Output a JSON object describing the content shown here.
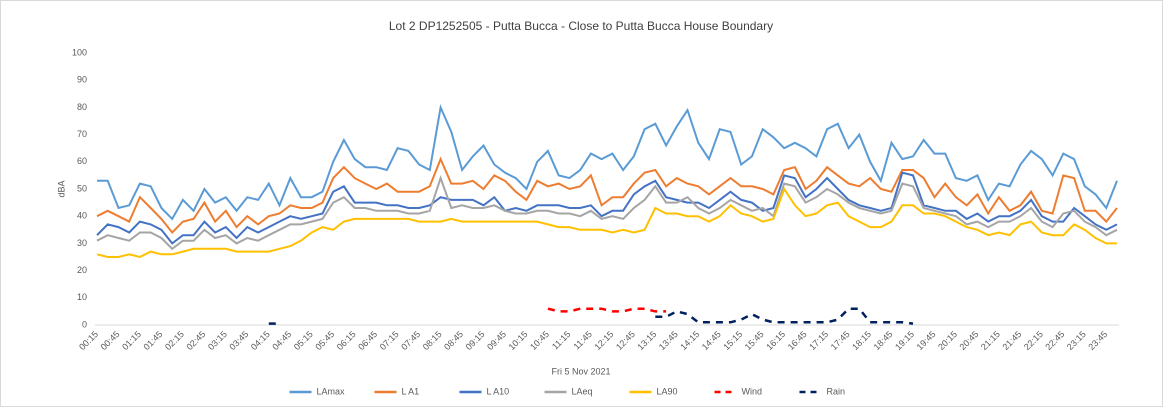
{
  "chart_data": {
    "type": "line",
    "title": "Lot 2 DP1252505 - Putta Bucca - Close to Putta Bucca House Boundary",
    "x_label": "Fri 5 Nov 2021",
    "y_label": "dBA",
    "categories": [
      "00:15",
      null,
      "00:45",
      null,
      "01:15",
      null,
      "01:45",
      null,
      "02:15",
      null,
      "02:45",
      null,
      "03:15",
      null,
      "03:45",
      null,
      "04:15",
      null,
      "04:45",
      null,
      "05:15",
      null,
      "05:45",
      null,
      "06:15",
      null,
      "06:45",
      null,
      "07:15",
      null,
      "07:45",
      null,
      "08:15",
      null,
      "08:45",
      null,
      "09:15",
      null,
      "09:45",
      null,
      "10:15",
      null,
      "10:45",
      null,
      "11:15",
      null,
      "11:45",
      null,
      "12:15",
      null,
      "12:45",
      null,
      "13:15",
      null,
      "13:45",
      null,
      "14:15",
      null,
      "14:45",
      null,
      "15:15",
      null,
      "15:45",
      null,
      "16:15",
      null,
      "16:45",
      null,
      "17:15",
      null,
      "17:45",
      null,
      "18:15",
      null,
      "18:45",
      null,
      "19:15",
      null,
      "19:45",
      null,
      "20:15",
      null,
      "20:45",
      null,
      "21:15",
      null,
      "21:45",
      null,
      "22:15",
      null,
      "22:45",
      null,
      "23:15",
      null,
      "23:45",
      null
    ],
    "ylim": [
      0,
      100
    ],
    "yticks": [
      0,
      10,
      20,
      30,
      40,
      50,
      60,
      70,
      80,
      90,
      100
    ],
    "grid": false,
    "legend": "bottom",
    "series": [
      {
        "name": "LAmax",
        "color": "#5b9bd5",
        "dashed": false,
        "values": [
          53,
          53,
          43,
          44,
          52,
          51,
          43,
          39,
          46,
          42,
          50,
          45,
          47,
          42,
          47,
          46,
          52,
          44,
          54,
          47,
          47,
          49,
          60,
          68,
          61,
          58,
          58,
          57,
          65,
          64,
          59,
          57,
          80,
          71,
          57,
          62,
          66,
          59,
          56,
          54,
          50,
          60,
          64,
          55,
          54,
          57,
          63,
          61,
          63,
          57,
          62,
          72,
          74,
          66,
          73,
          79,
          67,
          61,
          72,
          71,
          59,
          62,
          72,
          69,
          65,
          67,
          65,
          62,
          72,
          74,
          65,
          70,
          60,
          53,
          67,
          61,
          62,
          68,
          63,
          63,
          54,
          53,
          55,
          46,
          52,
          51,
          59,
          64,
          61,
          55,
          63,
          61,
          51,
          48,
          43,
          53
        ]
      },
      {
        "name": "L A1",
        "color": "#ed7d31",
        "dashed": false,
        "values": [
          40,
          42,
          40,
          38,
          47,
          43,
          39,
          34,
          38,
          39,
          45,
          38,
          42,
          36,
          40,
          37,
          40,
          41,
          44,
          43,
          43,
          45,
          54,
          58,
          54,
          52,
          50,
          52,
          49,
          49,
          49,
          51,
          61,
          52,
          52,
          53,
          50,
          55,
          53,
          49,
          46,
          53,
          51,
          52,
          50,
          51,
          55,
          44,
          47,
          47,
          52,
          56,
          57,
          51,
          54,
          52,
          51,
          48,
          51,
          54,
          51,
          51,
          50,
          48,
          57,
          58,
          50,
          53,
          58,
          55,
          52,
          51,
          54,
          50,
          49,
          57,
          57,
          54,
          47,
          52,
          47,
          44,
          48,
          41,
          47,
          42,
          44,
          49,
          42,
          41,
          55,
          54,
          42,
          42,
          38,
          43
        ]
      },
      {
        "name": "L A10",
        "color": "#4472c4",
        "dashed": false,
        "values": [
          33,
          37,
          36,
          34,
          38,
          37,
          35,
          30,
          33,
          33,
          38,
          34,
          36,
          32,
          36,
          34,
          36,
          38,
          40,
          39,
          40,
          41,
          49,
          51,
          45,
          45,
          45,
          44,
          44,
          43,
          43,
          44,
          47,
          46,
          46,
          46,
          44,
          47,
          42,
          43,
          42,
          44,
          44,
          44,
          43,
          43,
          44,
          40,
          42,
          42,
          48,
          51,
          53,
          47,
          46,
          45,
          45,
          43,
          46,
          49,
          46,
          45,
          42,
          43,
          55,
          54,
          47,
          50,
          54,
          50,
          46,
          44,
          43,
          42,
          43,
          56,
          55,
          44,
          43,
          42,
          42,
          39,
          41,
          38,
          40,
          40,
          42,
          46,
          40,
          38,
          38,
          43,
          40,
          37,
          35,
          37
        ]
      },
      {
        "name": "LAeq",
        "color": "#a5a5a5",
        "dashed": false,
        "values": [
          31,
          33,
          32,
          31,
          34,
          34,
          32,
          28,
          31,
          31,
          35,
          32,
          33,
          30,
          32,
          31,
          33,
          35,
          37,
          37,
          38,
          39,
          45,
          47,
          43,
          43,
          42,
          42,
          42,
          41,
          41,
          42,
          54,
          43,
          44,
          43,
          43,
          44,
          42,
          41,
          41,
          42,
          42,
          41,
          41,
          40,
          42,
          39,
          40,
          39,
          43,
          46,
          51,
          45,
          45,
          47,
          43,
          41,
          43,
          46,
          44,
          42,
          43,
          40,
          52,
          51,
          45,
          47,
          50,
          48,
          45,
          43,
          42,
          41,
          42,
          52,
          51,
          43,
          42,
          41,
          40,
          37,
          38,
          36,
          38,
          38,
          40,
          43,
          38,
          36,
          41,
          42,
          38,
          36,
          33,
          35
        ]
      },
      {
        "name": "LA90",
        "color": "#ffc000",
        "dashed": false,
        "values": [
          26,
          25,
          25,
          26,
          25,
          27,
          26,
          26,
          27,
          28,
          28,
          28,
          28,
          27,
          27,
          27,
          27,
          28,
          29,
          31,
          34,
          36,
          35,
          38,
          39,
          39,
          39,
          39,
          39,
          39,
          38,
          38,
          38,
          39,
          38,
          38,
          38,
          38,
          38,
          38,
          38,
          38,
          37,
          36,
          36,
          35,
          35,
          35,
          34,
          35,
          34,
          35,
          43,
          41,
          41,
          40,
          40,
          38,
          40,
          44,
          41,
          40,
          38,
          39,
          50,
          44,
          40,
          41,
          44,
          45,
          40,
          38,
          36,
          36,
          38,
          44,
          44,
          41,
          41,
          40,
          38,
          36,
          35,
          33,
          34,
          33,
          37,
          38,
          34,
          33,
          33,
          37,
          35,
          32,
          30,
          30
        ]
      },
      {
        "name": "Wind",
        "color": "#ff0000",
        "dashed": true,
        "values": [
          null,
          null,
          null,
          null,
          null,
          null,
          null,
          null,
          null,
          null,
          null,
          null,
          null,
          null,
          null,
          null,
          null,
          null,
          null,
          null,
          null,
          null,
          null,
          null,
          null,
          null,
          null,
          null,
          null,
          null,
          null,
          null,
          null,
          null,
          null,
          null,
          null,
          null,
          null,
          null,
          null,
          null,
          6,
          5,
          5,
          6,
          6,
          6,
          5,
          5,
          6,
          6,
          5,
          5,
          null,
          null,
          null,
          null,
          null,
          null,
          null,
          null,
          null,
          null,
          null,
          null,
          null,
          null,
          null,
          null,
          null,
          null,
          null,
          null,
          null,
          null,
          null,
          null,
          null,
          null,
          null,
          null,
          null,
          null,
          null,
          null,
          null,
          null,
          null,
          null,
          null,
          null,
          null,
          null,
          null,
          null
        ]
      },
      {
        "name": "Rain",
        "color": "#002060",
        "dashed": true,
        "values": [
          null,
          null,
          null,
          null,
          null,
          null,
          null,
          null,
          null,
          null,
          null,
          null,
          null,
          null,
          null,
          null,
          0.5,
          0.5,
          null,
          null,
          null,
          null,
          null,
          null,
          null,
          null,
          null,
          null,
          null,
          null,
          null,
          null,
          null,
          null,
          null,
          null,
          null,
          null,
          null,
          null,
          null,
          null,
          null,
          null,
          null,
          null,
          null,
          null,
          null,
          null,
          null,
          null,
          3,
          3,
          5,
          4,
          1,
          1,
          1,
          1,
          2,
          4,
          2,
          1,
          1,
          1,
          1,
          1,
          1,
          2,
          6,
          6,
          1,
          1,
          1,
          1,
          0.5,
          null,
          null,
          null,
          null,
          null,
          null,
          null,
          null,
          null,
          null,
          null,
          null,
          null,
          null,
          null,
          null,
          null,
          null,
          null
        ]
      }
    ]
  }
}
